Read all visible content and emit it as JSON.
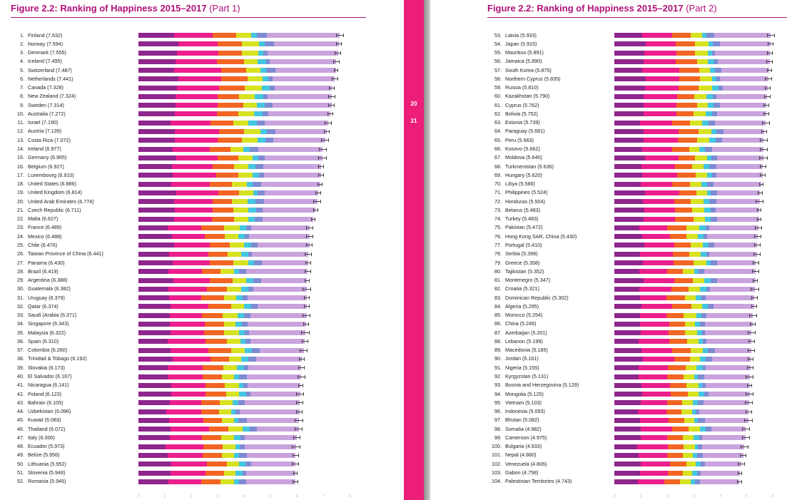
{
  "colors": {
    "gdp": "#8e268d",
    "social_support": "#ec1e8c",
    "healthy_life": "#f26522",
    "freedom": "#d7e221",
    "generosity": "#43c7e0",
    "corruption": "#7e8bd3",
    "dystopia_residual": "#c9a3dd",
    "title": "#b0117a",
    "spine": "#ec1e79"
  },
  "page_numbers": {
    "left": "20",
    "right": "21"
  },
  "left_page": {
    "title_main": "Figure 2.2: Ranking of Happiness 2015–2017",
    "title_part": "(Part 1)",
    "axis_ticks": [
      "0",
      "1",
      "2",
      "3",
      "4",
      "5",
      "6",
      "7",
      "8"
    ],
    "rows": [
      {
        "rank": "1.",
        "label": "Finland (7.632)"
      },
      {
        "rank": "2.",
        "label": "Norway (7.594)"
      },
      {
        "rank": "3.",
        "label": "Denmark (7.555)"
      },
      {
        "rank": "4.",
        "label": "Iceland (7.495)"
      },
      {
        "rank": "5.",
        "label": "Switzerland (7.487)"
      },
      {
        "rank": "6.",
        "label": "Netherlands (7.441)"
      },
      {
        "rank": "7.",
        "label": "Canada (7.328)"
      },
      {
        "rank": "8.",
        "label": "New Zealand (7.324)"
      },
      {
        "rank": "9.",
        "label": "Sweden (7.314)"
      },
      {
        "rank": "10.",
        "label": "Australia (7.272)"
      },
      {
        "rank": "11.",
        "label": "Israel (7.190)"
      },
      {
        "rank": "12.",
        "label": "Austria (7.139)"
      },
      {
        "rank": "13.",
        "label": "Costa Rica (7.072)"
      },
      {
        "rank": "14.",
        "label": "Ireland (6.977)"
      },
      {
        "rank": "15.",
        "label": "Germany (6.965)"
      },
      {
        "rank": "16.",
        "label": "Belgium (6.927)"
      },
      {
        "rank": "17.",
        "label": "Luxembourg (6.910)"
      },
      {
        "rank": "18.",
        "label": "United States (6.886)"
      },
      {
        "rank": "19.",
        "label": "United Kingdom (6.814)"
      },
      {
        "rank": "20.",
        "label": "United Arab Emirates (6.774)"
      },
      {
        "rank": "21.",
        "label": "Czech Republic (6.711)"
      },
      {
        "rank": "22.",
        "label": "Malta (6.627)"
      },
      {
        "rank": "23.",
        "label": "France (6.489)"
      },
      {
        "rank": "24.",
        "label": "Mexico (6.488)"
      },
      {
        "rank": "25.",
        "label": "Chile (6.476)"
      },
      {
        "rank": "26.",
        "label": "Taiwan Province of China (6.441)"
      },
      {
        "rank": "27.",
        "label": "Panama (6.430)"
      },
      {
        "rank": "28.",
        "label": "Brazil (6.419)"
      },
      {
        "rank": "29.",
        "label": "Argentina (6.388)"
      },
      {
        "rank": "30.",
        "label": "Guatemala (6.382)"
      },
      {
        "rank": "31.",
        "label": "Uruguay (6.379)"
      },
      {
        "rank": "32.",
        "label": "Qatar (6.374)"
      },
      {
        "rank": "33.",
        "label": "Saudi (Arabia (6.371)"
      },
      {
        "rank": "34.",
        "label": "Singapore (6.343)"
      },
      {
        "rank": "35.",
        "label": "Malaysia (6.322)"
      },
      {
        "rank": "36.",
        "label": "Spain (6.310)"
      },
      {
        "rank": "37.",
        "label": "Colombia (6.260)"
      },
      {
        "rank": "38.",
        "label": "Trinidad & Tobago (6.192)"
      },
      {
        "rank": "39.",
        "label": "Slovakia (6.173)"
      },
      {
        "rank": "40.",
        "label": "El Salvador (6.167)"
      },
      {
        "rank": "41.",
        "label": "Nicaragua (6.141)"
      },
      {
        "rank": "42.",
        "label": "Poland (6.123)"
      },
      {
        "rank": "43.",
        "label": "Bahrain (6.105)"
      },
      {
        "rank": "44.",
        "label": "Uzbekistan (6.096)"
      },
      {
        "rank": "45.",
        "label": "Kuwait (6.083)"
      },
      {
        "rank": "46.",
        "label": "Thailand (6.072)"
      },
      {
        "rank": "47.",
        "label": "Italy (6.000)"
      },
      {
        "rank": "48.",
        "label": "Ecuador (5.973)"
      },
      {
        "rank": "49.",
        "label": "Belize (5.956)"
      },
      {
        "rank": "50.",
        "label": "Lithuania (5.952)"
      },
      {
        "rank": "51.",
        "label": "Slovenia (5.948)"
      },
      {
        "rank": "52.",
        "label": "Romania (5.945)"
      }
    ]
  },
  "right_page": {
    "title_main": "Figure 2.2: Ranking of Happiness 2015–2017",
    "title_part": "(Part 2)",
    "axis_ticks": [
      "0",
      "1",
      "2",
      "3",
      "4",
      "5",
      "6",
      "7"
    ],
    "rows": [
      {
        "rank": "53.",
        "label": "Latvia (5.933)"
      },
      {
        "rank": "54.",
        "label": "Japan (5.915)"
      },
      {
        "rank": "55.",
        "label": "Mauritius (5.891)"
      },
      {
        "rank": "56.",
        "label": "Jamaica (5.890)"
      },
      {
        "rank": "57.",
        "label": "South Korea (5.875)"
      },
      {
        "rank": "58.",
        "label": "Northern Cyprus (5.835)"
      },
      {
        "rank": "59.",
        "label": "Russia (5.810)"
      },
      {
        "rank": "60.",
        "label": "Kazakhstan (5.790)"
      },
      {
        "rank": "61.",
        "label": "Cyprus (5.762)"
      },
      {
        "rank": "62.",
        "label": "Bolivia (5.752)"
      },
      {
        "rank": "63.",
        "label": "Estonia (5.739)"
      },
      {
        "rank": "64.",
        "label": "Paraguay (5.681)"
      },
      {
        "rank": "65.",
        "label": "Peru (5.663)"
      },
      {
        "rank": "66.",
        "label": "Kosovo (5.662)"
      },
      {
        "rank": "67.",
        "label": "Moldova (5.640)"
      },
      {
        "rank": "68.",
        "label": "Turkmenistan (5.636)"
      },
      {
        "rank": "69.",
        "label": "Hungary (5.620)"
      },
      {
        "rank": "70.",
        "label": "Libya (5.566)"
      },
      {
        "rank": "71.",
        "label": "Philippines (5.524)"
      },
      {
        "rank": "72.",
        "label": "Honduras (5.504)"
      },
      {
        "rank": "73.",
        "label": "Belarus (5.483)"
      },
      {
        "rank": "74.",
        "label": "Turkey (5.483)"
      },
      {
        "rank": "75.",
        "label": "Pakistan (5.472)"
      },
      {
        "rank": "76.",
        "label": "Hong Kong SAR, China (5.430)"
      },
      {
        "rank": "77.",
        "label": "Portugal (5.410)"
      },
      {
        "rank": "78.",
        "label": "Serbia (5.398)"
      },
      {
        "rank": "79.",
        "label": "Greece (5.358)"
      },
      {
        "rank": "80.",
        "label": "Tajikistan (5.352)"
      },
      {
        "rank": "81.",
        "label": "Montenegro (5.347)"
      },
      {
        "rank": "82.",
        "label": "Croatia (5.321)"
      },
      {
        "rank": "83.",
        "label": "Dominican Republic (5.302)"
      },
      {
        "rank": "84.",
        "label": "Algeria (5.295)"
      },
      {
        "rank": "85.",
        "label": "Morocco (5.254)"
      },
      {
        "rank": "86.",
        "label": "China (5.246)"
      },
      {
        "rank": "87.",
        "label": "Azerbaijan (5.201)"
      },
      {
        "rank": "88.",
        "label": "Lebanon (5.199)"
      },
      {
        "rank": "89.",
        "label": "Macedonia (5.185)"
      },
      {
        "rank": "90.",
        "label": "Jordan (5.161)"
      },
      {
        "rank": "91.",
        "label": "Nigeria (5.155)"
      },
      {
        "rank": "92.",
        "label": "Kyrgyzstan (5.131)"
      },
      {
        "rank": "93.",
        "label": "Bosnia and Herzegovina (5.129)"
      },
      {
        "rank": "94.",
        "label": "Mongolia (5.125)"
      },
      {
        "rank": "95.",
        "label": "Vietnam (5.103)"
      },
      {
        "rank": "96.",
        "label": "Indonesia (5.093)"
      },
      {
        "rank": "97.",
        "label": "Bhutan (5.082)"
      },
      {
        "rank": "98.",
        "label": "Somalia (4.982)"
      },
      {
        "rank": "99.",
        "label": "Cameroon (4.975)"
      },
      {
        "rank": "100.",
        "label": "Bulgaria (4.933)"
      },
      {
        "rank": "101.",
        "label": "Nepal (4.880)"
      },
      {
        "rank": "102.",
        "label": "Venezuela (4.806)"
      },
      {
        "rank": "103.",
        "label": "Gabon (4.758)"
      },
      {
        "rank": "104.",
        "label": "Palestinian Territories (4.743)"
      }
    ]
  }
}
